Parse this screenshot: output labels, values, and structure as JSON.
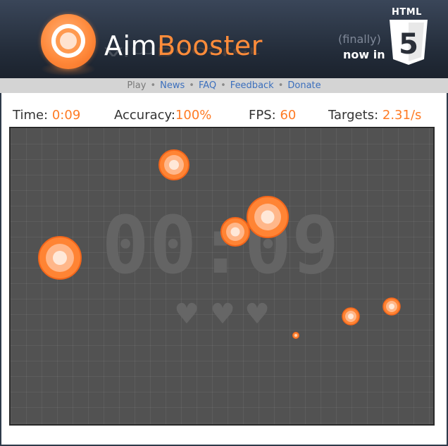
{
  "header": {
    "brand_part1": "Aim",
    "brand_part2": "Booster",
    "finally_text": "(finally)",
    "now_in_text": "now in",
    "html5_text": "HTML",
    "html5_number": "5"
  },
  "nav": {
    "items": [
      "Play",
      "News",
      "FAQ",
      "Feedback",
      "Donate"
    ],
    "separator": "•"
  },
  "stats": {
    "time_label": "Time:",
    "time_value": "0:09",
    "accuracy_label": "Accuracy:",
    "accuracy_value": "100%",
    "fps_label": "FPS:",
    "fps_value": "60",
    "targets_label": "Targets:",
    "targets_value": "2.31/s"
  },
  "game": {
    "watermark_timer": "00:09",
    "lives_remaining": 3,
    "heart_glyph": "♥",
    "colors": {
      "field_bg": "#525252",
      "target_outer": "#ff8a3c",
      "target_inner": "#ffe3cf",
      "accent": "#ff7b24"
    }
  }
}
